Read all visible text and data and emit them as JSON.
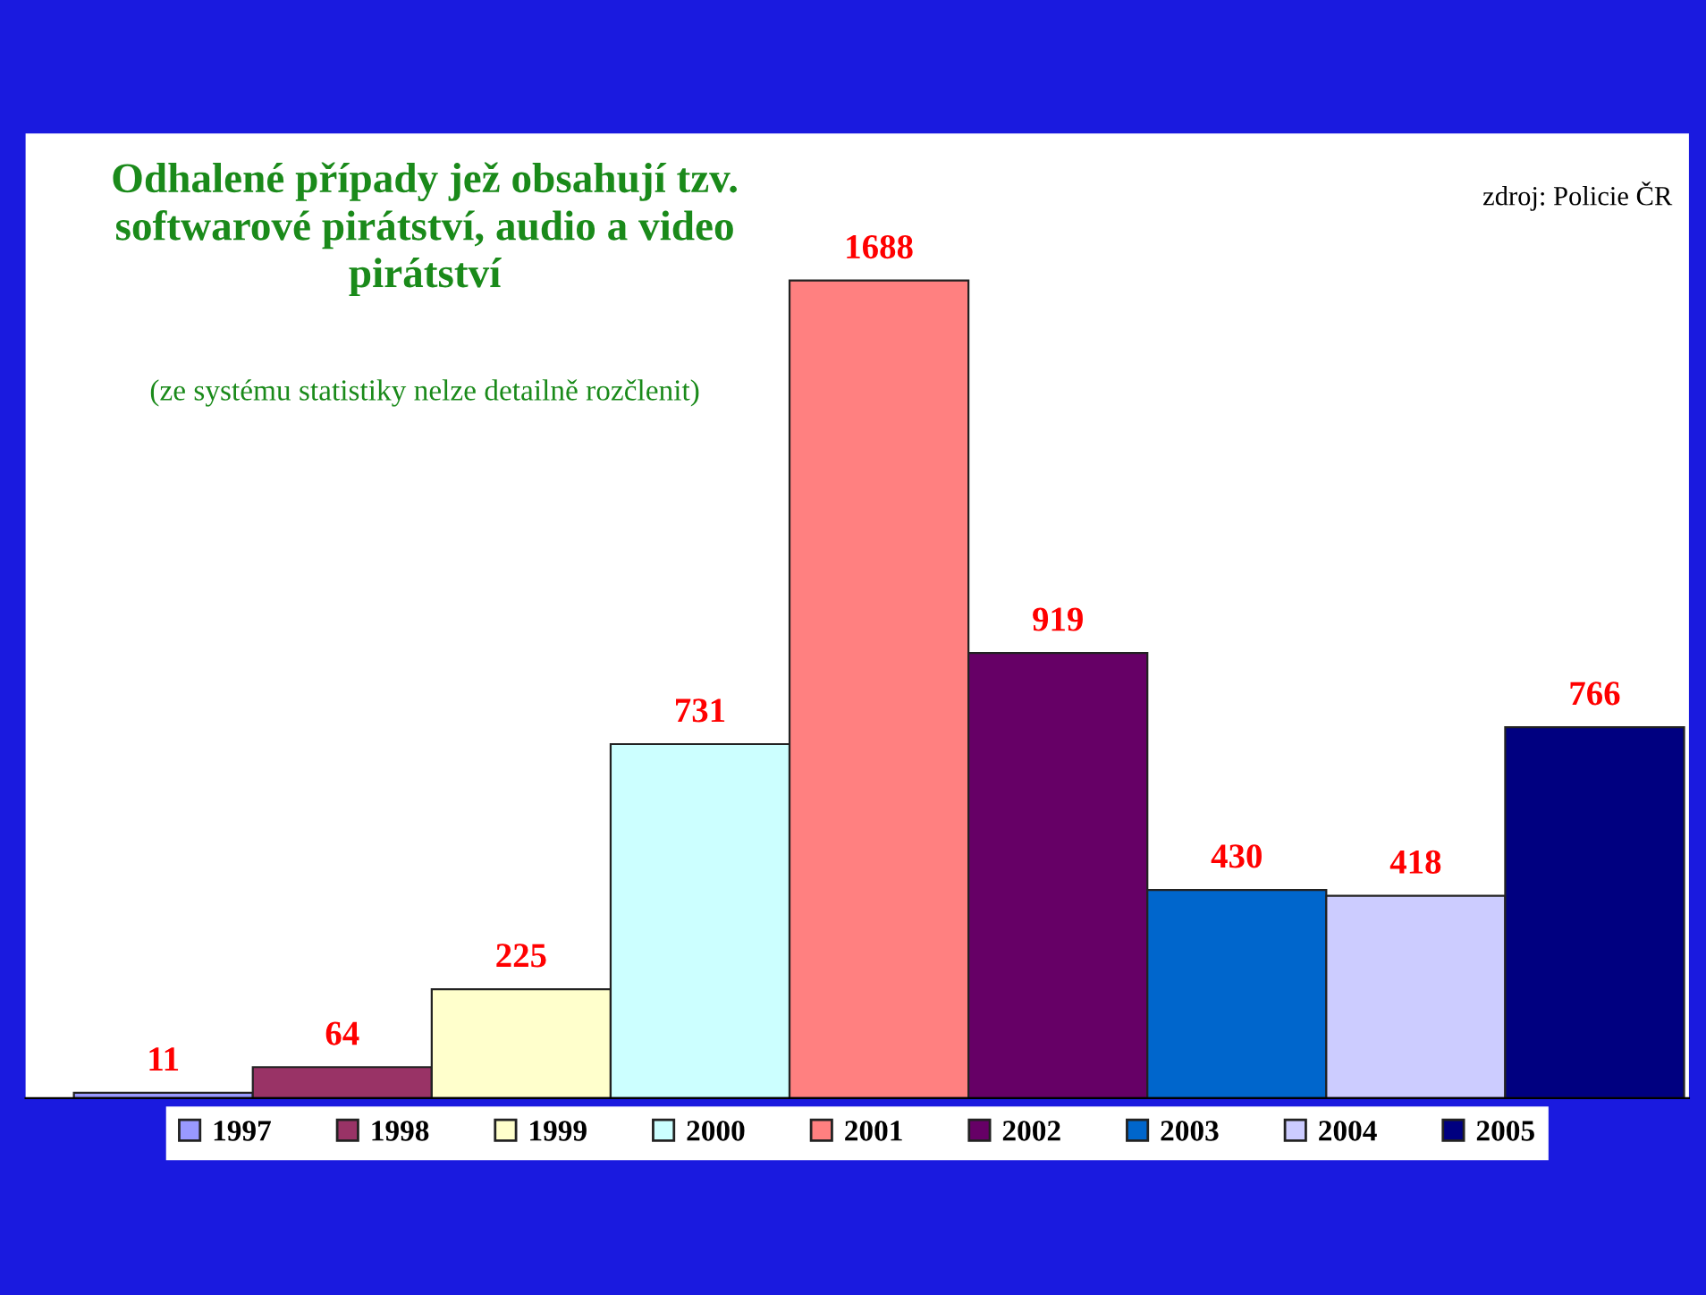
{
  "chart_data": {
    "type": "bar",
    "title": "Odhalené případy jež obsahují tzv.\nsoftwarové pirátství, audio a video\npirátství",
    "subtitle": "(ze systému statistiky nelze detailně rozčlenit)",
    "annotations": [
      "zdroj: Policie ČR"
    ],
    "categories": [
      null
    ],
    "series": [
      {
        "name": "1997",
        "color": "#9999ff",
        "values": [
          11
        ]
      },
      {
        "name": "1998",
        "color": "#993366",
        "values": [
          64
        ]
      },
      {
        "name": "1999",
        "color": "#ffffcc",
        "values": [
          225
        ]
      },
      {
        "name": "2000",
        "color": "#ccffff",
        "values": [
          731
        ]
      },
      {
        "name": "2001",
        "color": "#ff8080",
        "values": [
          1688
        ]
      },
      {
        "name": "2002",
        "color": "#660066",
        "values": [
          919
        ]
      },
      {
        "name": "2003",
        "color": "#0066cc",
        "values": [
          430
        ]
      },
      {
        "name": "2004",
        "color": "#ccccff",
        "values": [
          418
        ]
      },
      {
        "name": "2005",
        "color": "#000080",
        "values": [
          766
        ]
      }
    ],
    "data_labels": true,
    "legend": "bottom"
  }
}
